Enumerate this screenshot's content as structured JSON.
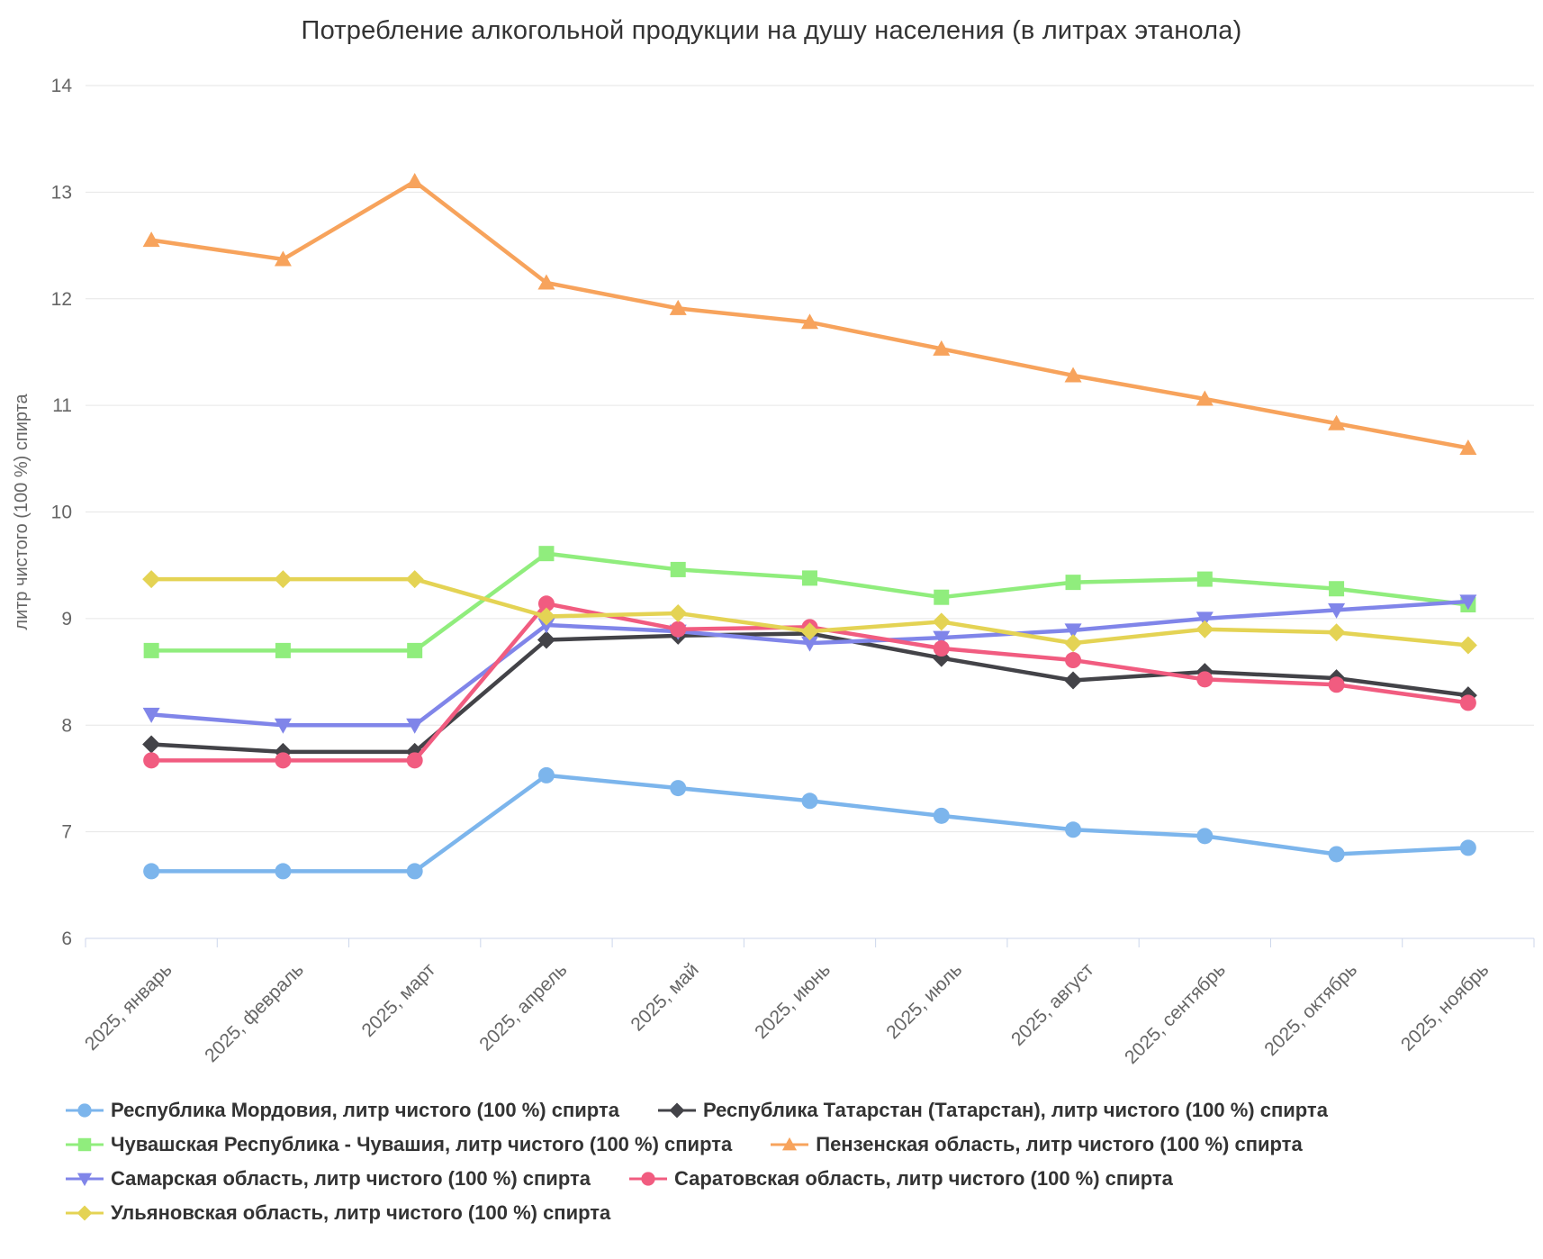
{
  "chart_data": {
    "type": "line",
    "title": "Потребление алкогольной продукции на душу населения (в литрах этанола)",
    "xlabel": "",
    "ylabel": "литр чистого (100 %) спирта",
    "ylim": [
      6,
      14
    ],
    "ytick_step": 1,
    "grid": "horizontal-only",
    "legend_position": "bottom-left",
    "categories": [
      "2025, январь",
      "2025, февраль",
      "2025, март",
      "2025, апрель",
      "2025, май",
      "2025, июнь",
      "2025, июль",
      "2025, август",
      "2025, сентябрь",
      "2025, октябрь",
      "2025, ноябрь"
    ],
    "series": [
      {
        "name": "Республика Мордовия, литр чистого (100 %) спирта",
        "color": "#7cb5ec",
        "marker": "circle",
        "values": [
          6.63,
          6.63,
          6.63,
          7.53,
          7.41,
          7.29,
          7.15,
          7.02,
          6.96,
          6.79,
          6.85
        ]
      },
      {
        "name": "Республика Татарстан (Татарстан), литр чистого (100 %) спирта",
        "color": "#434348",
        "marker": "diamond",
        "values": [
          7.82,
          7.75,
          7.75,
          8.8,
          8.84,
          8.86,
          8.63,
          8.42,
          8.5,
          8.44,
          8.28
        ]
      },
      {
        "name": "Чувашская Республика - Чувашия, литр чистого (100 %) спирта",
        "color": "#90ed7d",
        "marker": "square",
        "values": [
          8.7,
          8.7,
          8.7,
          9.61,
          9.46,
          9.38,
          9.2,
          9.34,
          9.37,
          9.28,
          9.13
        ]
      },
      {
        "name": "Пензенская область, литр чистого (100 %) спирта",
        "color": "#f7a35c",
        "marker": "triangle",
        "values": [
          12.55,
          12.37,
          13.1,
          12.15,
          11.91,
          11.78,
          11.53,
          11.28,
          11.06,
          10.83,
          10.6
        ]
      },
      {
        "name": "Самарская область, литр чистого (100 %) спирта",
        "color": "#8085e9",
        "marker": "triangle-down",
        "values": [
          8.1,
          8.0,
          8.0,
          8.94,
          8.88,
          8.77,
          8.82,
          8.89,
          9.0,
          9.08,
          9.16
        ]
      },
      {
        "name": "Саратовская область, литр чистого (100 %) спирта",
        "color": "#f15c80",
        "marker": "circle",
        "values": [
          7.67,
          7.67,
          7.67,
          9.14,
          8.9,
          8.92,
          8.72,
          8.61,
          8.43,
          8.38,
          8.21
        ]
      },
      {
        "name": "Ульяновская область, литр чистого (100 %) спирта",
        "color": "#e4d354",
        "marker": "diamond",
        "values": [
          9.37,
          9.37,
          9.37,
          9.02,
          9.05,
          8.88,
          8.97,
          8.77,
          8.9,
          8.87,
          8.75
        ]
      }
    ]
  },
  "style_colors": {
    "grid": "#e6e6e6",
    "axis": "#ccd6eb",
    "axis_label": "#666666",
    "title_text": "#333333",
    "legend_text": "#333333"
  }
}
